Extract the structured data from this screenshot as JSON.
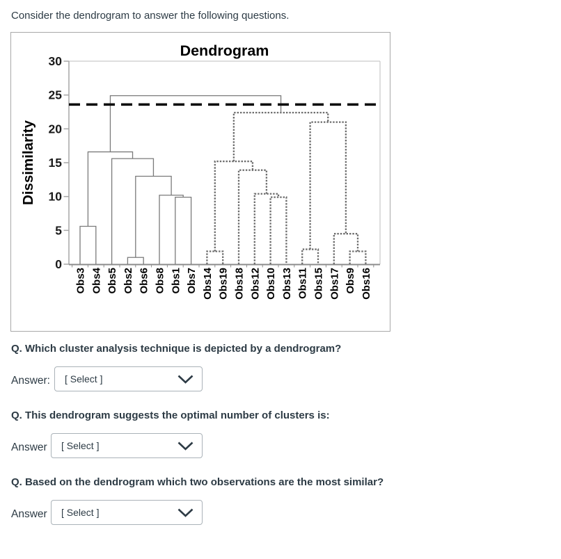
{
  "page": {
    "heading": "Consider the dendrogram to answer the following questions."
  },
  "questions": [
    {
      "text": "Q. Which cluster analysis technique is depicted by a dendrogram?",
      "answer_label": "Answer:",
      "select_value": "[ Select ]"
    },
    {
      "text": "Q. This dendrogram suggests the optimal number of clusters is:",
      "answer_label": "Answer",
      "select_value": "[ Select ]"
    },
    {
      "text": "Q. Based on the dendrogram which two observations are the most similar?",
      "answer_label": "Answer",
      "select_value": "[ Select ]"
    }
  ],
  "colors": {
    "page_text": "#2d3b45",
    "select_border": "#aab2b8",
    "figure_border": "#a8a8a8",
    "solid_cluster": "#7a7a7a",
    "dotted_cluster": "#6c6c6c",
    "y_axis": "#a6a6a6",
    "x_axis": "#8c8c8c",
    "plot_border": "#c9c9c9",
    "threshold": "#0f0f0f",
    "chart_text": "#000000"
  },
  "chart_data": {
    "type": "dendrogram",
    "title": "Dendrogram",
    "ylabel": "Dissimilarity",
    "ylim": [
      0,
      30
    ],
    "yticks": [
      0,
      5,
      10,
      15,
      20,
      25,
      30
    ],
    "grid": false,
    "threshold_line": {
      "value": 23.6,
      "style": "dashed"
    },
    "leaves": [
      "Obs3",
      "Obs4",
      "Obs5",
      "Obs2",
      "Obs6",
      "Obs8",
      "Obs1",
      "Obs7",
      "Obs14",
      "Obs19",
      "Obs18",
      "Obs12",
      "Obs10",
      "Obs13",
      "Obs11",
      "Obs15",
      "Obs17",
      "Obs9",
      "Obs16"
    ],
    "merges": [
      {
        "id": "m1",
        "a": "Obs3",
        "b": "Obs4",
        "height": 5.6,
        "style": "solid"
      },
      {
        "id": "m2",
        "a": "Obs2",
        "b": "Obs6",
        "height": 1.0,
        "style": "solid"
      },
      {
        "id": "m3",
        "a": "Obs1",
        "b": "Obs7",
        "height": 9.9,
        "style": "solid"
      },
      {
        "id": "m4",
        "a": "Obs8",
        "b": "m3",
        "height": 10.2,
        "style": "solid"
      },
      {
        "id": "m5",
        "a": "m2",
        "b": "m4",
        "height": 13.0,
        "style": "solid"
      },
      {
        "id": "m6",
        "a": "Obs5",
        "b": "m5",
        "height": 15.6,
        "style": "solid"
      },
      {
        "id": "m7",
        "a": "m1",
        "b": "m6",
        "height": 16.6,
        "style": "solid"
      },
      {
        "id": "m8",
        "a": "Obs14",
        "b": "Obs19",
        "height": 1.9,
        "style": "dotted"
      },
      {
        "id": "m9",
        "a": "Obs10",
        "b": "Obs13",
        "height": 9.9,
        "style": "dotted"
      },
      {
        "id": "m10",
        "a": "Obs12",
        "b": "m9",
        "height": 10.4,
        "style": "dotted"
      },
      {
        "id": "m11",
        "a": "Obs18",
        "b": "m10",
        "height": 13.9,
        "style": "dotted"
      },
      {
        "id": "m12",
        "a": "m8",
        "b": "m11",
        "height": 15.2,
        "style": "dotted"
      },
      {
        "id": "m13",
        "a": "Obs11",
        "b": "Obs15",
        "height": 2.2,
        "style": "dotted"
      },
      {
        "id": "m14",
        "a": "Obs9",
        "b": "Obs16",
        "height": 1.9,
        "style": "dotted"
      },
      {
        "id": "m15",
        "a": "Obs17",
        "b": "m14",
        "height": 4.5,
        "style": "dotted"
      },
      {
        "id": "m16",
        "a": "m13",
        "b": "m15",
        "height": 21.0,
        "style": "dotted"
      },
      {
        "id": "m17",
        "a": "m12",
        "b": "m16",
        "height": 22.4,
        "style": "dotted"
      },
      {
        "id": "m18",
        "a": "m7",
        "b": "m17",
        "height": 24.9,
        "style": "solid"
      }
    ]
  }
}
